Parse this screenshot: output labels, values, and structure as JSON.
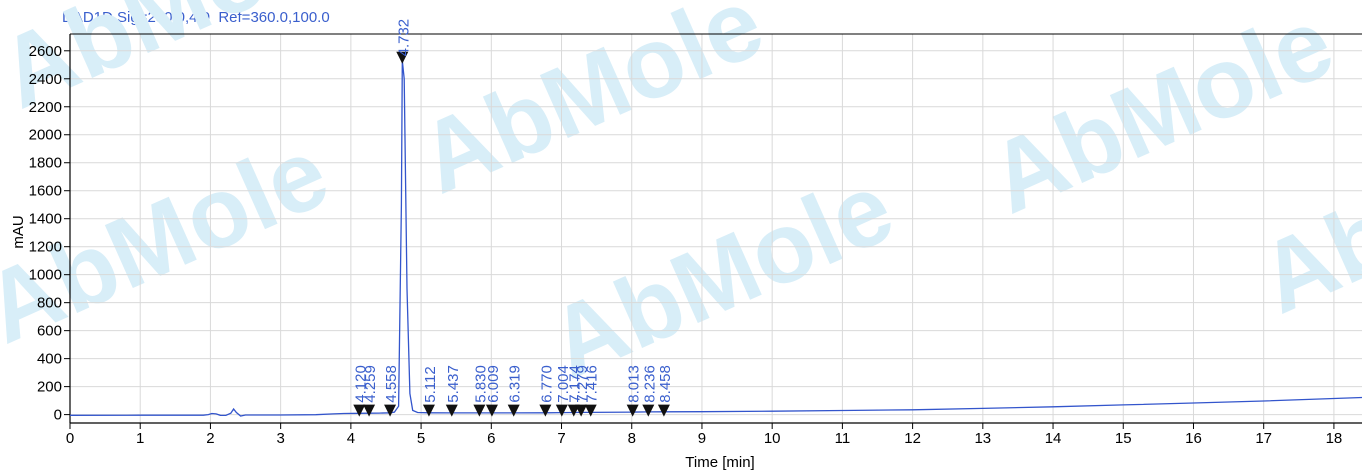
{
  "signal_title": "DAD1D,Sig=230.0,4.0  Ref=360.0,100.0",
  "watermark_text": "AbMole",
  "colors": {
    "trace": "#3355cc",
    "label": "#3a5fcd",
    "axis": "#000000",
    "grid": "#d9d9d9",
    "watermark": "#d8eef8",
    "watermark_o": "#fde8b0"
  },
  "chart_data": {
    "type": "line",
    "title": "DAD1D,Sig=230.0,4.0  Ref=360.0,100.0",
    "xlabel": "Time [min]",
    "ylabel": "mAU",
    "xlim": [
      0,
      18.4
    ],
    "ylim": [
      -60,
      2720
    ],
    "xticks": [
      0,
      1,
      2,
      3,
      4,
      5,
      6,
      7,
      8,
      9,
      10,
      11,
      12,
      13,
      14,
      15,
      16,
      17,
      18
    ],
    "yticks": [
      0,
      200,
      400,
      600,
      800,
      1000,
      1200,
      1400,
      1600,
      1800,
      2000,
      2200,
      2400,
      2600
    ],
    "grid": true,
    "series": [
      {
        "points": [
          [
            0.0,
            -5
          ],
          [
            1.0,
            -4
          ],
          [
            1.9,
            -4
          ],
          [
            1.97,
            0
          ],
          [
            2.02,
            8
          ],
          [
            2.08,
            5
          ],
          [
            2.14,
            -5
          ],
          [
            2.22,
            -6
          ],
          [
            2.29,
            10
          ],
          [
            2.33,
            40
          ],
          [
            2.37,
            15
          ],
          [
            2.43,
            -10
          ],
          [
            2.5,
            -3
          ],
          [
            3.0,
            -3
          ],
          [
            3.5,
            -1
          ],
          [
            3.75,
            5
          ],
          [
            3.9,
            8
          ],
          [
            4.12,
            9
          ],
          [
            4.26,
            10
          ],
          [
            4.4,
            11
          ],
          [
            4.558,
            13
          ],
          [
            4.62,
            18
          ],
          [
            4.68,
            60
          ],
          [
            4.72,
            1500
          ],
          [
            4.732,
            2530
          ],
          [
            4.76,
            2400
          ],
          [
            4.8,
            900
          ],
          [
            4.84,
            150
          ],
          [
            4.88,
            30
          ],
          [
            4.95,
            15
          ],
          [
            5.112,
            13
          ],
          [
            5.437,
            12
          ],
          [
            5.83,
            12
          ],
          [
            6.009,
            12
          ],
          [
            6.319,
            12
          ],
          [
            6.77,
            13
          ],
          [
            7.004,
            14
          ],
          [
            7.174,
            15
          ],
          [
            7.279,
            16
          ],
          [
            7.416,
            16
          ],
          [
            8.013,
            18
          ],
          [
            8.236,
            19
          ],
          [
            8.458,
            20
          ],
          [
            9.0,
            21
          ],
          [
            10.0,
            24
          ],
          [
            11.0,
            29
          ],
          [
            12.0,
            34
          ],
          [
            13.0,
            44
          ],
          [
            14.0,
            56
          ],
          [
            15.0,
            69
          ],
          [
            16.0,
            83
          ],
          [
            17.0,
            97
          ],
          [
            18.0,
            115
          ],
          [
            18.4,
            122
          ]
        ]
      }
    ],
    "peaks": [
      {
        "rt": "4.120",
        "x": 4.12
      },
      {
        "rt": "4.259",
        "x": 4.259
      },
      {
        "rt": "4.558",
        "x": 4.558
      },
      {
        "rt": "4.732",
        "x": 4.732
      },
      {
        "rt": "5.112",
        "x": 5.112
      },
      {
        "rt": "5.437",
        "x": 5.437
      },
      {
        "rt": "5.830",
        "x": 5.83
      },
      {
        "rt": "6.009",
        "x": 6.009
      },
      {
        "rt": "6.319",
        "x": 6.319
      },
      {
        "rt": "6.770",
        "x": 6.77
      },
      {
        "rt": "7.004",
        "x": 7.004
      },
      {
        "rt": "7.174",
        "x": 7.174
      },
      {
        "rt": "7.279",
        "x": 7.279
      },
      {
        "rt": "7.416",
        "x": 7.416
      },
      {
        "rt": "8.013",
        "x": 8.013
      },
      {
        "rt": "8.236",
        "x": 8.236
      },
      {
        "rt": "8.458",
        "x": 8.458
      }
    ]
  }
}
